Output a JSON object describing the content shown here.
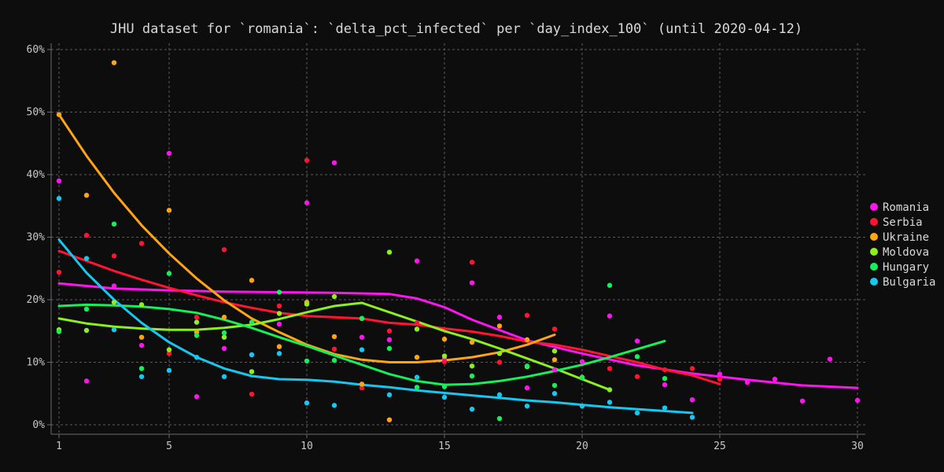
{
  "chart_data": {
    "type": "scatter",
    "title": "JHU dataset for `romania`: `delta_pct_infected` per `day_index_100` (until 2020-04-12)",
    "xlabel": "",
    "ylabel": "",
    "xlim": [
      1,
      30
    ],
    "ylim": [
      0,
      60
    ],
    "x_ticks": [
      1,
      5,
      10,
      15,
      20,
      25,
      30
    ],
    "y_ticks": [
      0,
      10,
      20,
      30,
      40,
      50,
      60
    ],
    "y_tick_format": "%",
    "grid": true,
    "legend_position": "right",
    "series": [
      {
        "name": "Romania",
        "color": "#ff14f0",
        "points": [
          [
            1,
            39
          ],
          [
            2,
            7
          ],
          [
            3,
            22.2
          ],
          [
            4,
            12.7
          ],
          [
            5,
            43.4
          ],
          [
            6,
            4.5
          ],
          [
            7,
            12.2
          ],
          [
            8,
            11.2
          ],
          [
            9,
            16.1
          ],
          [
            10,
            35.5
          ],
          [
            11,
            41.9
          ],
          [
            12,
            14
          ],
          [
            13,
            13.6
          ],
          [
            14,
            26.2
          ],
          [
            15,
            10.6
          ],
          [
            16,
            22.7
          ],
          [
            17,
            17.2
          ],
          [
            18,
            5.9
          ],
          [
            19,
            8.8
          ],
          [
            20,
            10.1
          ],
          [
            21,
            17.4
          ],
          [
            22,
            13.4
          ],
          [
            23,
            6.4
          ],
          [
            24,
            4
          ],
          [
            25,
            8.1
          ],
          [
            26,
            6.8
          ],
          [
            27,
            7.3
          ],
          [
            28,
            3.8
          ],
          [
            29,
            10.5
          ],
          [
            30,
            3.9
          ]
        ],
        "trend": [
          [
            1,
            22.6
          ],
          [
            3,
            21.8
          ],
          [
            5,
            21.5
          ],
          [
            7,
            21.3
          ],
          [
            9,
            21.2
          ],
          [
            11,
            21.1
          ],
          [
            13,
            20.9
          ],
          [
            14,
            20.2
          ],
          [
            15,
            18.8
          ],
          [
            16,
            16.8
          ],
          [
            18,
            13.5
          ],
          [
            20,
            11.4
          ],
          [
            22,
            9.5
          ],
          [
            24,
            8.2
          ],
          [
            26,
            7.2
          ],
          [
            28,
            6.3
          ],
          [
            30,
            5.9
          ]
        ]
      },
      {
        "name": "Serbia",
        "color": "#ff1432",
        "points": [
          [
            1,
            24.4
          ],
          [
            2,
            30.3
          ],
          [
            3,
            27
          ],
          [
            4,
            29
          ],
          [
            5,
            11.4
          ],
          [
            6,
            17.2
          ],
          [
            7,
            28
          ],
          [
            8,
            4.9
          ],
          [
            9,
            19
          ],
          [
            10,
            42.3
          ],
          [
            11,
            12.1
          ],
          [
            12,
            5.9
          ],
          [
            13,
            15
          ],
          [
            14,
            16.3
          ],
          [
            15,
            10.1
          ],
          [
            16,
            26
          ],
          [
            17,
            10
          ],
          [
            18,
            17.5
          ],
          [
            19,
            15.3
          ],
          [
            21,
            9
          ],
          [
            22,
            7.7
          ],
          [
            23,
            8.8
          ],
          [
            24,
            9
          ],
          [
            25,
            7.3
          ]
        ],
        "trend": [
          [
            1,
            27.8
          ],
          [
            2,
            26.2
          ],
          [
            3,
            24.6
          ],
          [
            4,
            23.2
          ],
          [
            5,
            21.9
          ],
          [
            6,
            20.7
          ],
          [
            7,
            19.6
          ],
          [
            8,
            18.7
          ],
          [
            9,
            17.9
          ],
          [
            10,
            17.4
          ],
          [
            11,
            17.2
          ],
          [
            12,
            17
          ],
          [
            13,
            16.3
          ],
          [
            14,
            16
          ],
          [
            15,
            15.4
          ],
          [
            16,
            14.9
          ],
          [
            17,
            14.2
          ],
          [
            18,
            13.3
          ],
          [
            19,
            12.8
          ],
          [
            20,
            12
          ],
          [
            21,
            11
          ],
          [
            22,
            10
          ],
          [
            23,
            8.8
          ],
          [
            24,
            7.9
          ],
          [
            25,
            6.5
          ]
        ]
      },
      {
        "name": "Ukraine",
        "color": "#ffa514",
        "points": [
          [
            1,
            49.6
          ],
          [
            2,
            36.7
          ],
          [
            3,
            57.9
          ],
          [
            4,
            14
          ],
          [
            5,
            34.3
          ],
          [
            6,
            14.8
          ],
          [
            7,
            17.2
          ],
          [
            8,
            23.1
          ],
          [
            9,
            12.5
          ],
          [
            10,
            19.6
          ],
          [
            11,
            14.1
          ],
          [
            12,
            6.5
          ],
          [
            13,
            0.8
          ],
          [
            14,
            10.8
          ],
          [
            15,
            13.7
          ],
          [
            16,
            13.2
          ],
          [
            17,
            15.8
          ],
          [
            18,
            13.6
          ],
          [
            19,
            10.4
          ]
        ],
        "trend": [
          [
            1,
            49.6
          ],
          [
            2,
            43
          ],
          [
            3,
            37.1
          ],
          [
            4,
            31.9
          ],
          [
            5,
            27.4
          ],
          [
            6,
            23.4
          ],
          [
            7,
            19.9
          ],
          [
            8,
            17
          ],
          [
            9,
            14.8
          ],
          [
            10,
            12.8
          ],
          [
            11,
            11.3
          ],
          [
            12,
            10.4
          ],
          [
            13,
            10
          ],
          [
            14,
            10
          ],
          [
            15,
            10.3
          ],
          [
            16,
            10.8
          ],
          [
            17,
            11.6
          ],
          [
            18,
            12.8
          ],
          [
            19,
            14.4
          ]
        ]
      },
      {
        "name": "Moldova",
        "color": "#8cf01e",
        "points": [
          [
            1,
            15.2
          ],
          [
            2,
            15.1
          ],
          [
            3,
            19.6
          ],
          [
            4,
            19.2
          ],
          [
            5,
            12
          ],
          [
            6,
            16.4
          ],
          [
            7,
            14
          ],
          [
            8,
            8.5
          ],
          [
            9,
            17.8
          ],
          [
            10,
            19.3
          ],
          [
            11,
            20.5
          ],
          [
            12,
            17
          ],
          [
            13,
            27.6
          ],
          [
            14,
            15.3
          ],
          [
            15,
            11
          ],
          [
            16,
            9.4
          ],
          [
            17,
            11.4
          ],
          [
            18,
            9.3
          ],
          [
            19,
            11.8
          ],
          [
            20,
            7.6
          ],
          [
            21,
            5.6
          ]
        ],
        "trend": [
          [
            1,
            17
          ],
          [
            2,
            16.2
          ],
          [
            3,
            15.7
          ],
          [
            4,
            15.4
          ],
          [
            5,
            15.2
          ],
          [
            6,
            15.2
          ],
          [
            7,
            15.5
          ],
          [
            8,
            16
          ],
          [
            9,
            16.9
          ],
          [
            10,
            18
          ],
          [
            11,
            19
          ],
          [
            12,
            19.5
          ],
          [
            13,
            18
          ],
          [
            14,
            16.5
          ],
          [
            15,
            15
          ],
          [
            16,
            13.7
          ],
          [
            17,
            12.2
          ],
          [
            18,
            10.6
          ],
          [
            19,
            9
          ],
          [
            20,
            7.3
          ],
          [
            21,
            5.6
          ]
        ]
      },
      {
        "name": "Hungary",
        "color": "#14f05a",
        "points": [
          [
            1,
            14.9
          ],
          [
            2,
            18.5
          ],
          [
            3,
            32.1
          ],
          [
            4,
            9
          ],
          [
            5,
            24.2
          ],
          [
            6,
            14.3
          ],
          [
            7,
            14.7
          ],
          [
            8,
            16.4
          ],
          [
            9,
            21.2
          ],
          [
            10,
            10.2
          ],
          [
            11,
            10.3
          ],
          [
            12,
            17
          ],
          [
            13,
            12.2
          ],
          [
            14,
            6
          ],
          [
            15,
            6.1
          ],
          [
            16,
            7.8
          ],
          [
            17,
            1
          ],
          [
            18,
            9.4
          ],
          [
            19,
            6.3
          ],
          [
            20,
            7.5
          ],
          [
            21,
            22.3
          ],
          [
            22,
            10.9
          ],
          [
            23,
            7.4
          ]
        ],
        "trend": [
          [
            1,
            19
          ],
          [
            2,
            19.2
          ],
          [
            3,
            19.1
          ],
          [
            4,
            18.9
          ],
          [
            5,
            18.5
          ],
          [
            6,
            17.9
          ],
          [
            7,
            16.8
          ],
          [
            8,
            15.5
          ],
          [
            9,
            14
          ],
          [
            10,
            12.6
          ],
          [
            11,
            11.1
          ],
          [
            12,
            9.6
          ],
          [
            13,
            8.1
          ],
          [
            14,
            7
          ],
          [
            15,
            6.4
          ],
          [
            16,
            6.5
          ],
          [
            17,
            7
          ],
          [
            18,
            7.7
          ],
          [
            19,
            8.6
          ],
          [
            20,
            9.6
          ],
          [
            21,
            10.8
          ],
          [
            22,
            12.1
          ],
          [
            23,
            13.4
          ]
        ]
      },
      {
        "name": "Bulgaria",
        "color": "#14c8f0",
        "points": [
          [
            1,
            36.2
          ],
          [
            2,
            26.6
          ],
          [
            3,
            15.2
          ],
          [
            4,
            7.7
          ],
          [
            5,
            8.7
          ],
          [
            6,
            10.8
          ],
          [
            7,
            7.7
          ],
          [
            8,
            11.2
          ],
          [
            9,
            11.4
          ],
          [
            10,
            3.5
          ],
          [
            11,
            3.1
          ],
          [
            12,
            12
          ],
          [
            13,
            4.8
          ],
          [
            14,
            7.6
          ],
          [
            15,
            4.4
          ],
          [
            16,
            2.5
          ],
          [
            17,
            4.8
          ],
          [
            18,
            3
          ],
          [
            19,
            5
          ],
          [
            20,
            3
          ],
          [
            21,
            3.6
          ],
          [
            22,
            1.9
          ],
          [
            23,
            2.7
          ],
          [
            24,
            1.2
          ]
        ],
        "trend": [
          [
            1,
            29.6
          ],
          [
            2,
            24.3
          ],
          [
            3,
            20
          ],
          [
            4,
            16.3
          ],
          [
            5,
            13.2
          ],
          [
            6,
            10.8
          ],
          [
            7,
            9
          ],
          [
            8,
            7.8
          ],
          [
            9,
            7.3
          ],
          [
            10,
            7.2
          ],
          [
            11,
            6.9
          ],
          [
            12,
            6.4
          ],
          [
            13,
            6
          ],
          [
            14,
            5.5
          ],
          [
            15,
            5.1
          ],
          [
            16,
            4.7
          ],
          [
            17,
            4.3
          ],
          [
            18,
            3.9
          ],
          [
            19,
            3.6
          ],
          [
            20,
            3.2
          ],
          [
            21,
            2.8
          ],
          [
            22,
            2.5
          ],
          [
            23,
            2.2
          ],
          [
            24,
            1.9
          ]
        ]
      }
    ]
  }
}
